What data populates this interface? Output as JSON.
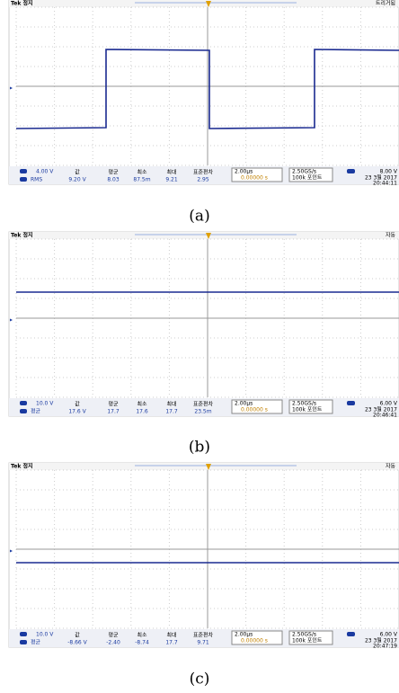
{
  "panels": [
    {
      "status": "Tek 정지",
      "trigger_state": "트리거됨",
      "channel_scale": "4.00 V",
      "measure_label": "RMS",
      "stat_headers": [
        "값",
        "평균",
        "최소",
        "최대",
        "표준편차"
      ],
      "stat_values": [
        "9.20 V",
        "8.03",
        "87.5m",
        "9.21",
        "2.95"
      ],
      "timebase": "2.00µs",
      "trigger_pos": "0.00000 s",
      "sample_rate": "2.50GS/s",
      "record_length": "100k 포인트",
      "trigger_level": "8.00 V",
      "date": "23 3월 2017",
      "time": "20:44:11",
      "caption": "(a)"
    },
    {
      "status": "Tek 정지",
      "trigger_state": "자동",
      "channel_scale": "10.0 V",
      "measure_label": "평균",
      "stat_headers": [
        "값",
        "평균",
        "최소",
        "최대",
        "표준편차"
      ],
      "stat_values": [
        "17.6 V",
        "17.7",
        "17.6",
        "17.7",
        "23.5m"
      ],
      "timebase": "2.00µs",
      "trigger_pos": "0.00000 s",
      "sample_rate": "2.50GS/s",
      "record_length": "100k 포인트",
      "trigger_level": "6.00 V",
      "date": "23 3월 2017",
      "time": "20:46:41",
      "caption": "(b)"
    },
    {
      "status": "Tek 정지",
      "trigger_state": "자동",
      "channel_scale": "10.0 V",
      "measure_label": "평균",
      "stat_headers": [
        "값",
        "평균",
        "최소",
        "최대",
        "표준편차"
      ],
      "stat_values": [
        "-8.66 V",
        "-2.40",
        "-8.74",
        "17.7",
        "9.71"
      ],
      "timebase": "2.00µs",
      "trigger_pos": "0.00000 s",
      "sample_rate": "2.50GS/s",
      "record_length": "100k 포인트",
      "trigger_level": "6.00 V",
      "date": "23 3월 2017",
      "time": "20:47:19",
      "caption": "(c)"
    }
  ]
}
